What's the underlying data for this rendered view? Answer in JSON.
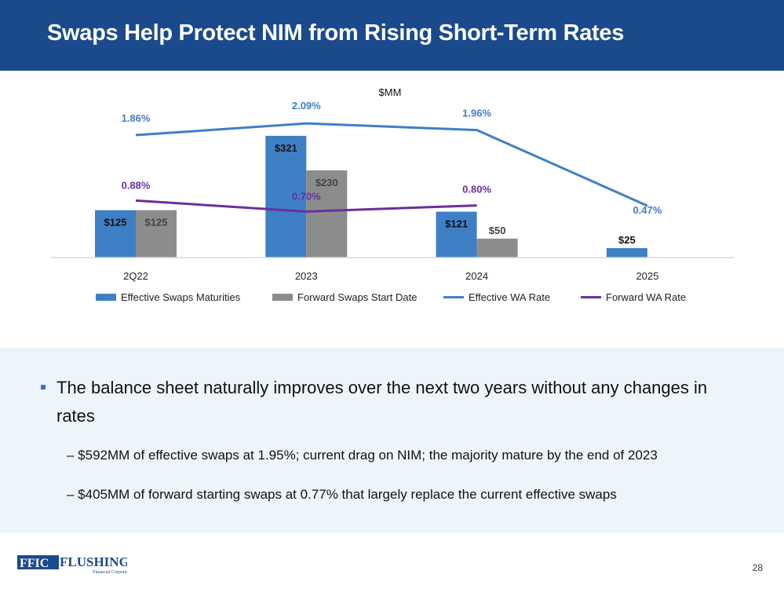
{
  "title": "Swaps Help Protect NIM from Rising Short-Term Rates",
  "chart_data": {
    "type": "bar",
    "unit_label": "$MM",
    "categories": [
      "2Q22",
      "2023",
      "2024",
      "2025"
    ],
    "series": [
      {
        "name": "Effective Swaps Maturities",
        "kind": "bar",
        "color": "#3f7fc6",
        "values": [
          125,
          321,
          121,
          25
        ],
        "labels": [
          "$125",
          "$321",
          "$121",
          "$25"
        ]
      },
      {
        "name": "Forward Swaps Start Date",
        "kind": "bar",
        "color": "#8c8c8c",
        "values": [
          125,
          230,
          50,
          null
        ],
        "labels": [
          "$125",
          "$230",
          "$50",
          null
        ]
      },
      {
        "name": "Effective WA Rate",
        "kind": "line",
        "color": "#3f7fc6",
        "values": [
          1.86,
          2.09,
          1.96,
          0.47
        ],
        "labels": [
          "1.86%",
          "2.09%",
          "1.96%",
          "0.47%"
        ]
      },
      {
        "name": "Forward WA Rate",
        "kind": "line",
        "color": "#6a2fa0",
        "values": [
          0.88,
          0.7,
          0.8,
          null
        ],
        "labels": [
          "0.88%",
          "0.70%",
          "0.80%",
          null
        ]
      }
    ],
    "legend": "bottom"
  },
  "bullets": {
    "main": "The balance sheet naturally improves over the next two years without any changes in rates",
    "subs": [
      "– $592MM of effective swaps at 1.95%; current drag on NIM; the majority mature by the end of 2023",
      "– $405MM of forward starting swaps at 0.77% that largely replace the current effective swaps"
    ]
  },
  "footer": {
    "logo_text": "FFIC FLUSHING Financial Corporation",
    "page": "28"
  }
}
